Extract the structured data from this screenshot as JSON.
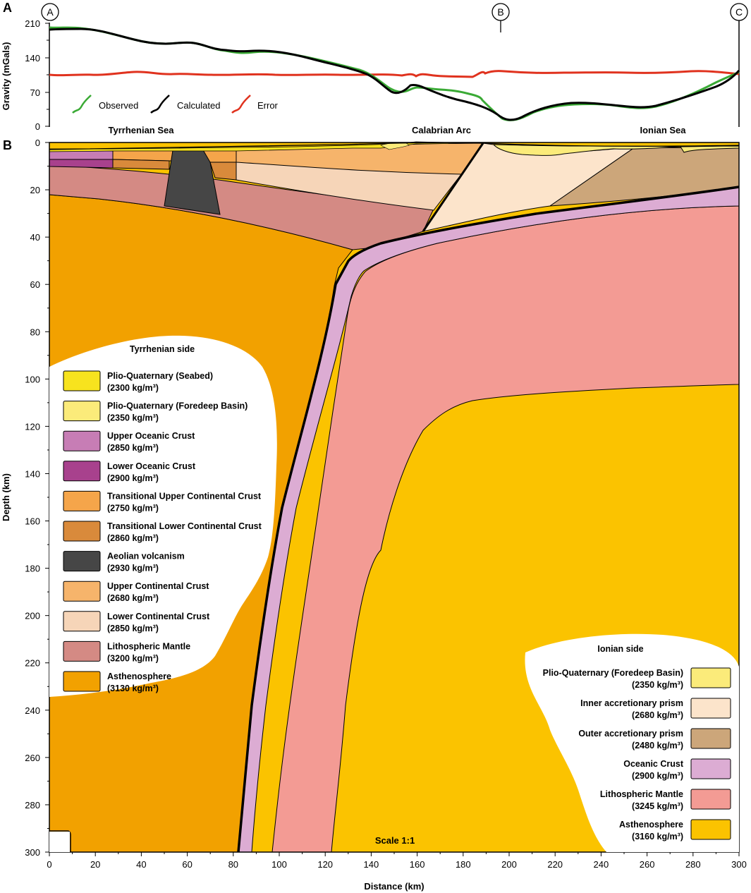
{
  "panel_a": {
    "label": "A",
    "ylabel": "Gravity (mGals)",
    "yticks": [
      "0",
      "70",
      "140",
      "210"
    ],
    "legend": {
      "observed": "Observed",
      "calculated": "Calculated",
      "error": "Error"
    },
    "colors": {
      "observed": "#3aaa35",
      "calculated": "#000000",
      "error": "#e0321e"
    },
    "markers": [
      "A",
      "B",
      "C"
    ],
    "regions": [
      "Tyrrhenian Sea",
      "Calabrian Arc",
      "Ionian Sea"
    ]
  },
  "panel_b": {
    "label": "B",
    "ylabel": "Depth (km)",
    "xlabel": "Distance (km)",
    "yticks": [
      "0",
      "20",
      "40",
      "60",
      "80",
      "100",
      "120",
      "140",
      "160",
      "180",
      "200",
      "220",
      "240",
      "260",
      "280",
      "300"
    ],
    "xticks": [
      "0",
      "20",
      "40",
      "60",
      "80",
      "100",
      "120",
      "140",
      "160",
      "180",
      "200",
      "220",
      "240",
      "260",
      "280",
      "300"
    ],
    "scale": "Scale 1:1"
  },
  "legend_tyrrhenian": {
    "title": "Tyrrhenian side",
    "items": [
      {
        "name": "Plio-Quaternary (Seabed)",
        "density": "(2300 kg/m³)",
        "color": "#f7e31e"
      },
      {
        "name": "Plio-Quaternary (Foredeep Basin)",
        "density": "(2350 kg/m³)",
        "color": "#fbeb7a"
      },
      {
        "name": "Upper Oceanic Crust",
        "density": "(2850 kg/m³)",
        "color": "#c77db5"
      },
      {
        "name": "Lower Oceanic Crust",
        "density": "(2900 kg/m³)",
        "color": "#a8418d"
      },
      {
        "name": "Transitional Upper Continental Crust",
        "density": "(2750 kg/m³)",
        "color": "#f5a54a"
      },
      {
        "name": "Transitional Lower Continental Crust",
        "density": "(2860 kg/m³)",
        "color": "#d98a3b"
      },
      {
        "name": "Aeolian volcanism",
        "density": "(2930 kg/m³)",
        "color": "#464646"
      },
      {
        "name": "Upper Continental Crust",
        "density": "(2680 kg/m³)",
        "color": "#f6b46b"
      },
      {
        "name": "Lower Continental Crust",
        "density": "(2850 kg/m³)",
        "color": "#f6d5b8"
      },
      {
        "name": "Lithospheric Mantle",
        "density": "(3200 kg/m³)",
        "color": "#d48a84"
      },
      {
        "name": "Asthenosphere",
        "density": "(3130 kg/m³)",
        "color": "#f2a100"
      }
    ]
  },
  "legend_ionian": {
    "title": "Ionian side",
    "items": [
      {
        "name": "Plio-Quaternary (Foredeep Basin)",
        "density": "(2350 kg/m³)",
        "color": "#fbeb7a"
      },
      {
        "name": "Inner accretionary prism",
        "density": "(2680 kg/m³)",
        "color": "#fce4cb"
      },
      {
        "name": "Outer accretionary prism",
        "density": "(2480 kg/m³)",
        "color": "#cca67a"
      },
      {
        "name": "Oceanic Crust",
        "density": "(2900 kg/m³)",
        "color": "#dcacd3"
      },
      {
        "name": "Lithospheric Mantle",
        "density": "(3245 kg/m³)",
        "color": "#f39b94"
      },
      {
        "name": "Asthenosphere",
        "density": "(3160 kg/m³)",
        "color": "#fbc300"
      }
    ]
  }
}
